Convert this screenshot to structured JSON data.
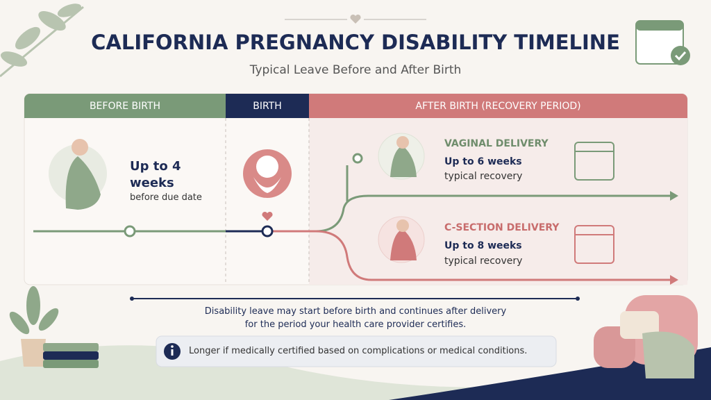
{
  "header": {
    "title": "CALIFORNIA PREGNANCY DISABILITY TIMELINE",
    "subtitle": "Typical Leave Before and After Birth"
  },
  "phases": [
    "BEFORE BIRTH",
    "BIRTH",
    "AFTER BIRTH (RECOVERY PERIOD)"
  ],
  "before": {
    "duration": "Up to 4 weeks",
    "note": "before due date"
  },
  "after": [
    {
      "label": "VAGINAL DELIVERY",
      "duration": "Up to 6 weeks",
      "note": "typical recovery"
    },
    {
      "label": "C-SECTION DELIVERY",
      "duration": "Up to 8 weeks",
      "note": "typical recovery"
    }
  ],
  "footer": {
    "summary": [
      "Disability leave may start before birth and continues after delivery",
      "for the period your health care provider certifies."
    ],
    "info": "Longer if medically certified based on complications or medical conditions."
  }
}
